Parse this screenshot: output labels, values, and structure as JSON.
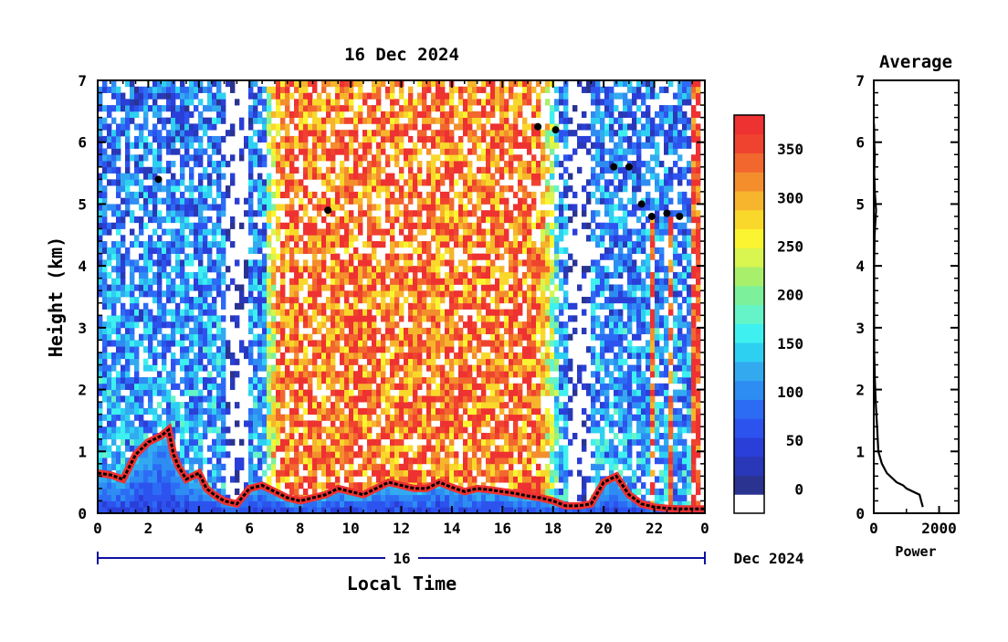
{
  "chart_data": [
    {
      "type": "heatmap",
      "title": "16 Dec 2024",
      "ylabel": "Height (km)",
      "xlabel": "Local Time",
      "ylim": [
        0,
        7
      ],
      "xlim": [
        0,
        24
      ],
      "x_ticks": [
        "0",
        "2",
        "4",
        "6",
        "8",
        "10",
        "12",
        "14",
        "16",
        "18",
        "20",
        "22",
        "0"
      ],
      "y_ticks": [
        "0",
        "1",
        "2",
        "3",
        "4",
        "5",
        "6",
        "7"
      ],
      "date_bar": {
        "day_label": "16",
        "month_label": "Dec 2024"
      },
      "colorbar": {
        "ticks": [
          "0",
          "50",
          "100",
          "150",
          "200",
          "250",
          "300",
          "350"
        ],
        "range": [
          -25,
          385
        ],
        "colors": [
          "#ffffff",
          "#2a3390",
          "#2838b8",
          "#2a3fd8",
          "#2d53ef",
          "#2c6cf5",
          "#2e8df2",
          "#33aaf0",
          "#2ed0f2",
          "#3ef0f0",
          "#65f3c8",
          "#7cf09a",
          "#a8f06c",
          "#d8f550",
          "#fbf531",
          "#f9d82b",
          "#f6b52c",
          "#f48e2d",
          "#f2672e",
          "#f0432f",
          "#ee3131"
        ]
      },
      "boundary_layer_km": [
        [
          0.0,
          0.65
        ],
        [
          0.5,
          0.62
        ],
        [
          1.0,
          0.55
        ],
        [
          1.5,
          0.95
        ],
        [
          2.0,
          1.15
        ],
        [
          2.5,
          1.25
        ],
        [
          2.8,
          1.35
        ],
        [
          3.0,
          0.95
        ],
        [
          3.2,
          0.75
        ],
        [
          3.5,
          0.55
        ],
        [
          4.0,
          0.65
        ],
        [
          4.3,
          0.4
        ],
        [
          4.6,
          0.3
        ],
        [
          5.0,
          0.2
        ],
        [
          5.5,
          0.15
        ],
        [
          6.0,
          0.4
        ],
        [
          6.5,
          0.45
        ],
        [
          7.0,
          0.35
        ],
        [
          7.5,
          0.25
        ],
        [
          8.0,
          0.2
        ],
        [
          8.5,
          0.25
        ],
        [
          9.0,
          0.3
        ],
        [
          9.5,
          0.4
        ],
        [
          10.0,
          0.35
        ],
        [
          10.5,
          0.3
        ],
        [
          11.0,
          0.4
        ],
        [
          11.5,
          0.5
        ],
        [
          12.0,
          0.45
        ],
        [
          12.5,
          0.4
        ],
        [
          13.0,
          0.4
        ],
        [
          13.5,
          0.5
        ],
        [
          14.0,
          0.42
        ],
        [
          14.5,
          0.35
        ],
        [
          15.0,
          0.4
        ],
        [
          15.5,
          0.38
        ],
        [
          16.0,
          0.35
        ],
        [
          16.5,
          0.32
        ],
        [
          17.0,
          0.28
        ],
        [
          17.5,
          0.25
        ],
        [
          18.0,
          0.2
        ],
        [
          18.5,
          0.12
        ],
        [
          19.0,
          0.12
        ],
        [
          19.5,
          0.15
        ],
        [
          20.0,
          0.5
        ],
        [
          20.5,
          0.6
        ],
        [
          21.0,
          0.3
        ],
        [
          21.5,
          0.15
        ],
        [
          22.0,
          0.1
        ],
        [
          22.5,
          0.08
        ],
        [
          23.0,
          0.07
        ],
        [
          23.5,
          0.07
        ],
        [
          24.0,
          0.07
        ]
      ],
      "elevated_layers": [
        {
          "x": 2.4,
          "y": 5.4
        },
        {
          "x": 9.1,
          "y": 4.9
        },
        {
          "x": 17.4,
          "y": 6.25
        },
        {
          "x": 18.1,
          "y": 6.2
        },
        {
          "x": 20.4,
          "y": 5.6
        },
        {
          "x": 21.0,
          "y": 5.6
        },
        {
          "x": 21.5,
          "y": 5.0
        },
        {
          "x": 21.9,
          "y": 4.8
        },
        {
          "x": 22.5,
          "y": 4.85
        },
        {
          "x": 23.0,
          "y": 4.8
        }
      ]
    },
    {
      "type": "line",
      "title": "Average",
      "xlabel": "Power",
      "ylabel": "",
      "xlim": [
        0,
        2600
      ],
      "ylim": [
        0,
        7
      ],
      "x_ticks": [
        "0",
        "2000"
      ],
      "y_ticks": [
        "0",
        "1",
        "2",
        "3",
        "4",
        "5",
        "6",
        "7"
      ],
      "x": [
        1500,
        1400,
        1000,
        900,
        700,
        400,
        250,
        140,
        100,
        60,
        30,
        15,
        10,
        10,
        12,
        25,
        70,
        30,
        15,
        30,
        15,
        10,
        5
      ],
      "y": [
        0.1,
        0.3,
        0.4,
        0.45,
        0.5,
        0.65,
        0.8,
        1.0,
        1.4,
        1.8,
        2.2,
        2.6,
        3.0,
        3.5,
        4.0,
        4.5,
        4.9,
        5.2,
        5.5,
        5.8,
        6.0,
        6.2,
        6.3
      ]
    }
  ]
}
